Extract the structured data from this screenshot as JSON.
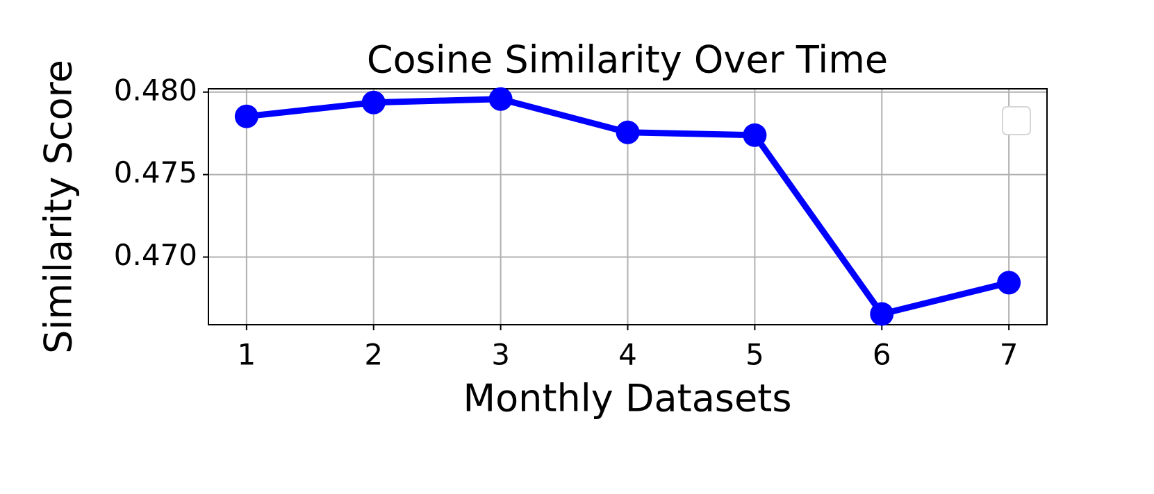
{
  "chart_data": {
    "type": "line",
    "title": "Cosine Similarity Over Time",
    "x_label": "Monthly Datasets",
    "y_label": "Similarity Score",
    "x": [
      1,
      2,
      3,
      4,
      5,
      6,
      7
    ],
    "series": [
      {
        "color": "#0000ff",
        "values": [
          0.47853,
          0.47937,
          0.47958,
          0.47756,
          0.47739,
          0.46655,
          0.46845
        ]
      }
    ],
    "xlim": [
      0.7,
      7.3
    ],
    "xticks": [
      1,
      2,
      3,
      4,
      5,
      6,
      7
    ],
    "ylim": [
      0.4659,
      0.4802
    ],
    "yticks": [
      {
        "value": 0.47,
        "label": "0.470"
      },
      {
        "value": 0.475,
        "label": "0.475"
      },
      {
        "value": 0.48,
        "label": "0.480"
      }
    ],
    "grid": true,
    "legend": "upper right"
  }
}
